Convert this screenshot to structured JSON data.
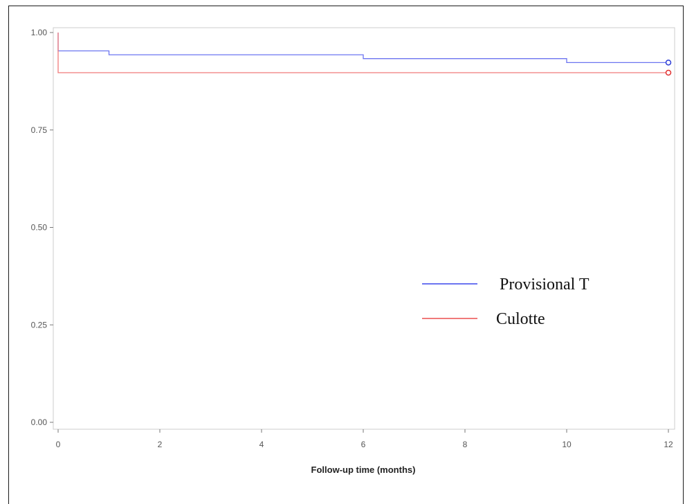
{
  "chart_data": {
    "type": "line",
    "subtype": "step (Kaplan-Meier survival curve)",
    "title": "",
    "xlabel": "Follow-up time (months)",
    "ylabel": "",
    "xlim": [
      0,
      12
    ],
    "ylim": [
      0,
      1
    ],
    "xticks": [
      0,
      2,
      4,
      6,
      8,
      10,
      12
    ],
    "xtick_labels": [
      "0",
      "2",
      "4",
      "6",
      "8",
      "10",
      "12"
    ],
    "yticks": [
      0,
      0.25,
      0.5,
      0.75,
      1
    ],
    "ytick_labels": [
      "0.00",
      "0.25",
      "0.50",
      "0.75",
      "1.00"
    ],
    "grid": false,
    "legend_position": "center-right inside plot",
    "series": [
      {
        "name": "Provisional T",
        "color": "#6b74f0",
        "steps": [
          [
            0,
            1.0
          ],
          [
            0,
            0.953
          ],
          [
            1,
            0.953
          ],
          [
            1,
            0.943
          ],
          [
            6,
            0.943
          ],
          [
            6,
            0.933
          ],
          [
            10,
            0.933
          ],
          [
            10,
            0.923
          ],
          [
            12,
            0.923
          ]
        ],
        "censored": [
          [
            12,
            0.923
          ]
        ],
        "censor_color": "#2b3bd6"
      },
      {
        "name": "Culotte",
        "color": "#f07a7a",
        "steps": [
          [
            0,
            1.0
          ],
          [
            0,
            0.897
          ],
          [
            12,
            0.897
          ]
        ],
        "censored": [
          [
            12,
            0.897
          ]
        ],
        "censor_color": "#e03030"
      }
    ]
  }
}
